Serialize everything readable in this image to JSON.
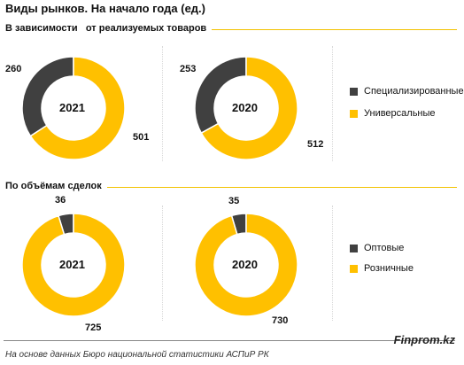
{
  "title": "Виды рынков. На начало года (ед.)",
  "sections": [
    {
      "title": "В зависимости   от реализуемых товаров"
    },
    {
      "title": "По объёмам сделок"
    }
  ],
  "colors": {
    "dark": "#404040",
    "accent": "#FFC000"
  },
  "chart_data": [
    {
      "type": "pie",
      "center_label": "2021",
      "series": [
        {
          "name": "Специализированные",
          "value": 260,
          "label": "260"
        },
        {
          "name": "Универсальные",
          "value": 501,
          "label": "501"
        }
      ]
    },
    {
      "type": "pie",
      "center_label": "2020",
      "series": [
        {
          "name": "Специализированные",
          "value": 253,
          "label": "253"
        },
        {
          "name": "Универсальные",
          "value": 512,
          "label": "512"
        }
      ]
    },
    {
      "type": "pie",
      "center_label": "2021",
      "series": [
        {
          "name": "Оптовые",
          "value": 36,
          "label": "36"
        },
        {
          "name": "Розничные",
          "value": 725,
          "label": "725"
        }
      ]
    },
    {
      "type": "pie",
      "center_label": "2020",
      "series": [
        {
          "name": "Оптовые",
          "value": 35,
          "label": "35"
        },
        {
          "name": "Розничные",
          "value": 730,
          "label": "730"
        }
      ]
    }
  ],
  "legends": [
    {
      "items": [
        "Специализированные",
        "Универсальные"
      ]
    },
    {
      "items": [
        "Оптовые",
        "Розничные"
      ]
    }
  ],
  "footer": {
    "source": "На основе данных Бюро национальной  статистики АСПиР РК",
    "brand": "Finprom.kz"
  }
}
